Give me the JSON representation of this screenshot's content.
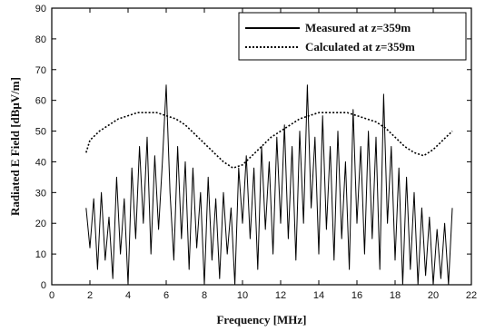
{
  "chart_data": {
    "type": "line",
    "xlabel": "Frequency [MHz]",
    "ylabel": "Radiated E Field [dBμV/m]",
    "xlim": [
      0,
      22
    ],
    "ylim": [
      0,
      90
    ],
    "xticks": [
      0,
      2,
      4,
      6,
      8,
      10,
      12,
      14,
      16,
      18,
      20,
      22
    ],
    "yticks": [
      0,
      10,
      20,
      30,
      40,
      50,
      60,
      70,
      80,
      90
    ],
    "grid": false,
    "legend_position": "top-right",
    "series": [
      {
        "name": "Measured at z=359m",
        "style": "solid",
        "color": "#000000",
        "x": [
          1.8,
          2.0,
          2.2,
          2.4,
          2.6,
          2.8,
          3.0,
          3.2,
          3.4,
          3.6,
          3.8,
          4.0,
          4.2,
          4.4,
          4.6,
          4.8,
          5.0,
          5.2,
          5.4,
          5.6,
          5.8,
          6.0,
          6.2,
          6.4,
          6.6,
          6.8,
          7.0,
          7.2,
          7.4,
          7.6,
          7.8,
          8.0,
          8.2,
          8.4,
          8.6,
          8.8,
          9.0,
          9.2,
          9.4,
          9.6,
          9.8,
          10.0,
          10.2,
          10.4,
          10.6,
          10.8,
          11.0,
          11.2,
          11.4,
          11.6,
          11.8,
          12.0,
          12.2,
          12.4,
          12.6,
          12.8,
          13.0,
          13.2,
          13.4,
          13.6,
          13.8,
          14.0,
          14.2,
          14.4,
          14.6,
          14.8,
          15.0,
          15.2,
          15.4,
          15.6,
          15.8,
          16.0,
          16.2,
          16.4,
          16.6,
          16.8,
          17.0,
          17.2,
          17.4,
          17.6,
          17.8,
          18.0,
          18.2,
          18.4,
          18.6,
          18.8,
          19.0,
          19.2,
          19.4,
          19.6,
          19.8,
          20.0,
          20.2,
          20.4,
          20.6,
          20.8,
          21.0
        ],
        "y": [
          25,
          12,
          28,
          5,
          30,
          8,
          22,
          2,
          35,
          10,
          28,
          0,
          38,
          15,
          45,
          20,
          48,
          10,
          42,
          18,
          40,
          65,
          30,
          8,
          45,
          15,
          40,
          5,
          38,
          12,
          30,
          0,
          35,
          8,
          28,
          2,
          30,
          10,
          25,
          0,
          38,
          20,
          42,
          15,
          38,
          5,
          45,
          18,
          40,
          10,
          48,
          20,
          52,
          15,
          45,
          8,
          50,
          20,
          65,
          25,
          48,
          10,
          55,
          18,
          45,
          8,
          50,
          15,
          40,
          5,
          57,
          20,
          45,
          10,
          50,
          15,
          48,
          5,
          62,
          20,
          45,
          8,
          38,
          0,
          35,
          5,
          30,
          0,
          25,
          3,
          22,
          0,
          18,
          2,
          20,
          0,
          25
        ]
      },
      {
        "name": "Calculated at z=359m",
        "style": "dotted",
        "color": "#000000",
        "x": [
          1.8,
          2.0,
          2.5,
          3.0,
          3.5,
          4.0,
          4.5,
          5.0,
          5.5,
          6.0,
          6.5,
          7.0,
          7.5,
          8.0,
          8.5,
          9.0,
          9.5,
          10.0,
          10.5,
          11.0,
          11.5,
          12.0,
          12.5,
          13.0,
          13.5,
          14.0,
          14.5,
          15.0,
          15.5,
          16.0,
          16.5,
          17.0,
          17.5,
          18.0,
          18.5,
          19.0,
          19.5,
          20.0,
          20.5,
          21.0
        ],
        "y": [
          43,
          47,
          50,
          52,
          54,
          55,
          56,
          56,
          56,
          55,
          54,
          52,
          49,
          46,
          43,
          40,
          38,
          39,
          42,
          45,
          48,
          50,
          52,
          54,
          55,
          56,
          56,
          56,
          56,
          55,
          54,
          53,
          51,
          48,
          45,
          43,
          42,
          44,
          47,
          50
        ]
      }
    ]
  }
}
